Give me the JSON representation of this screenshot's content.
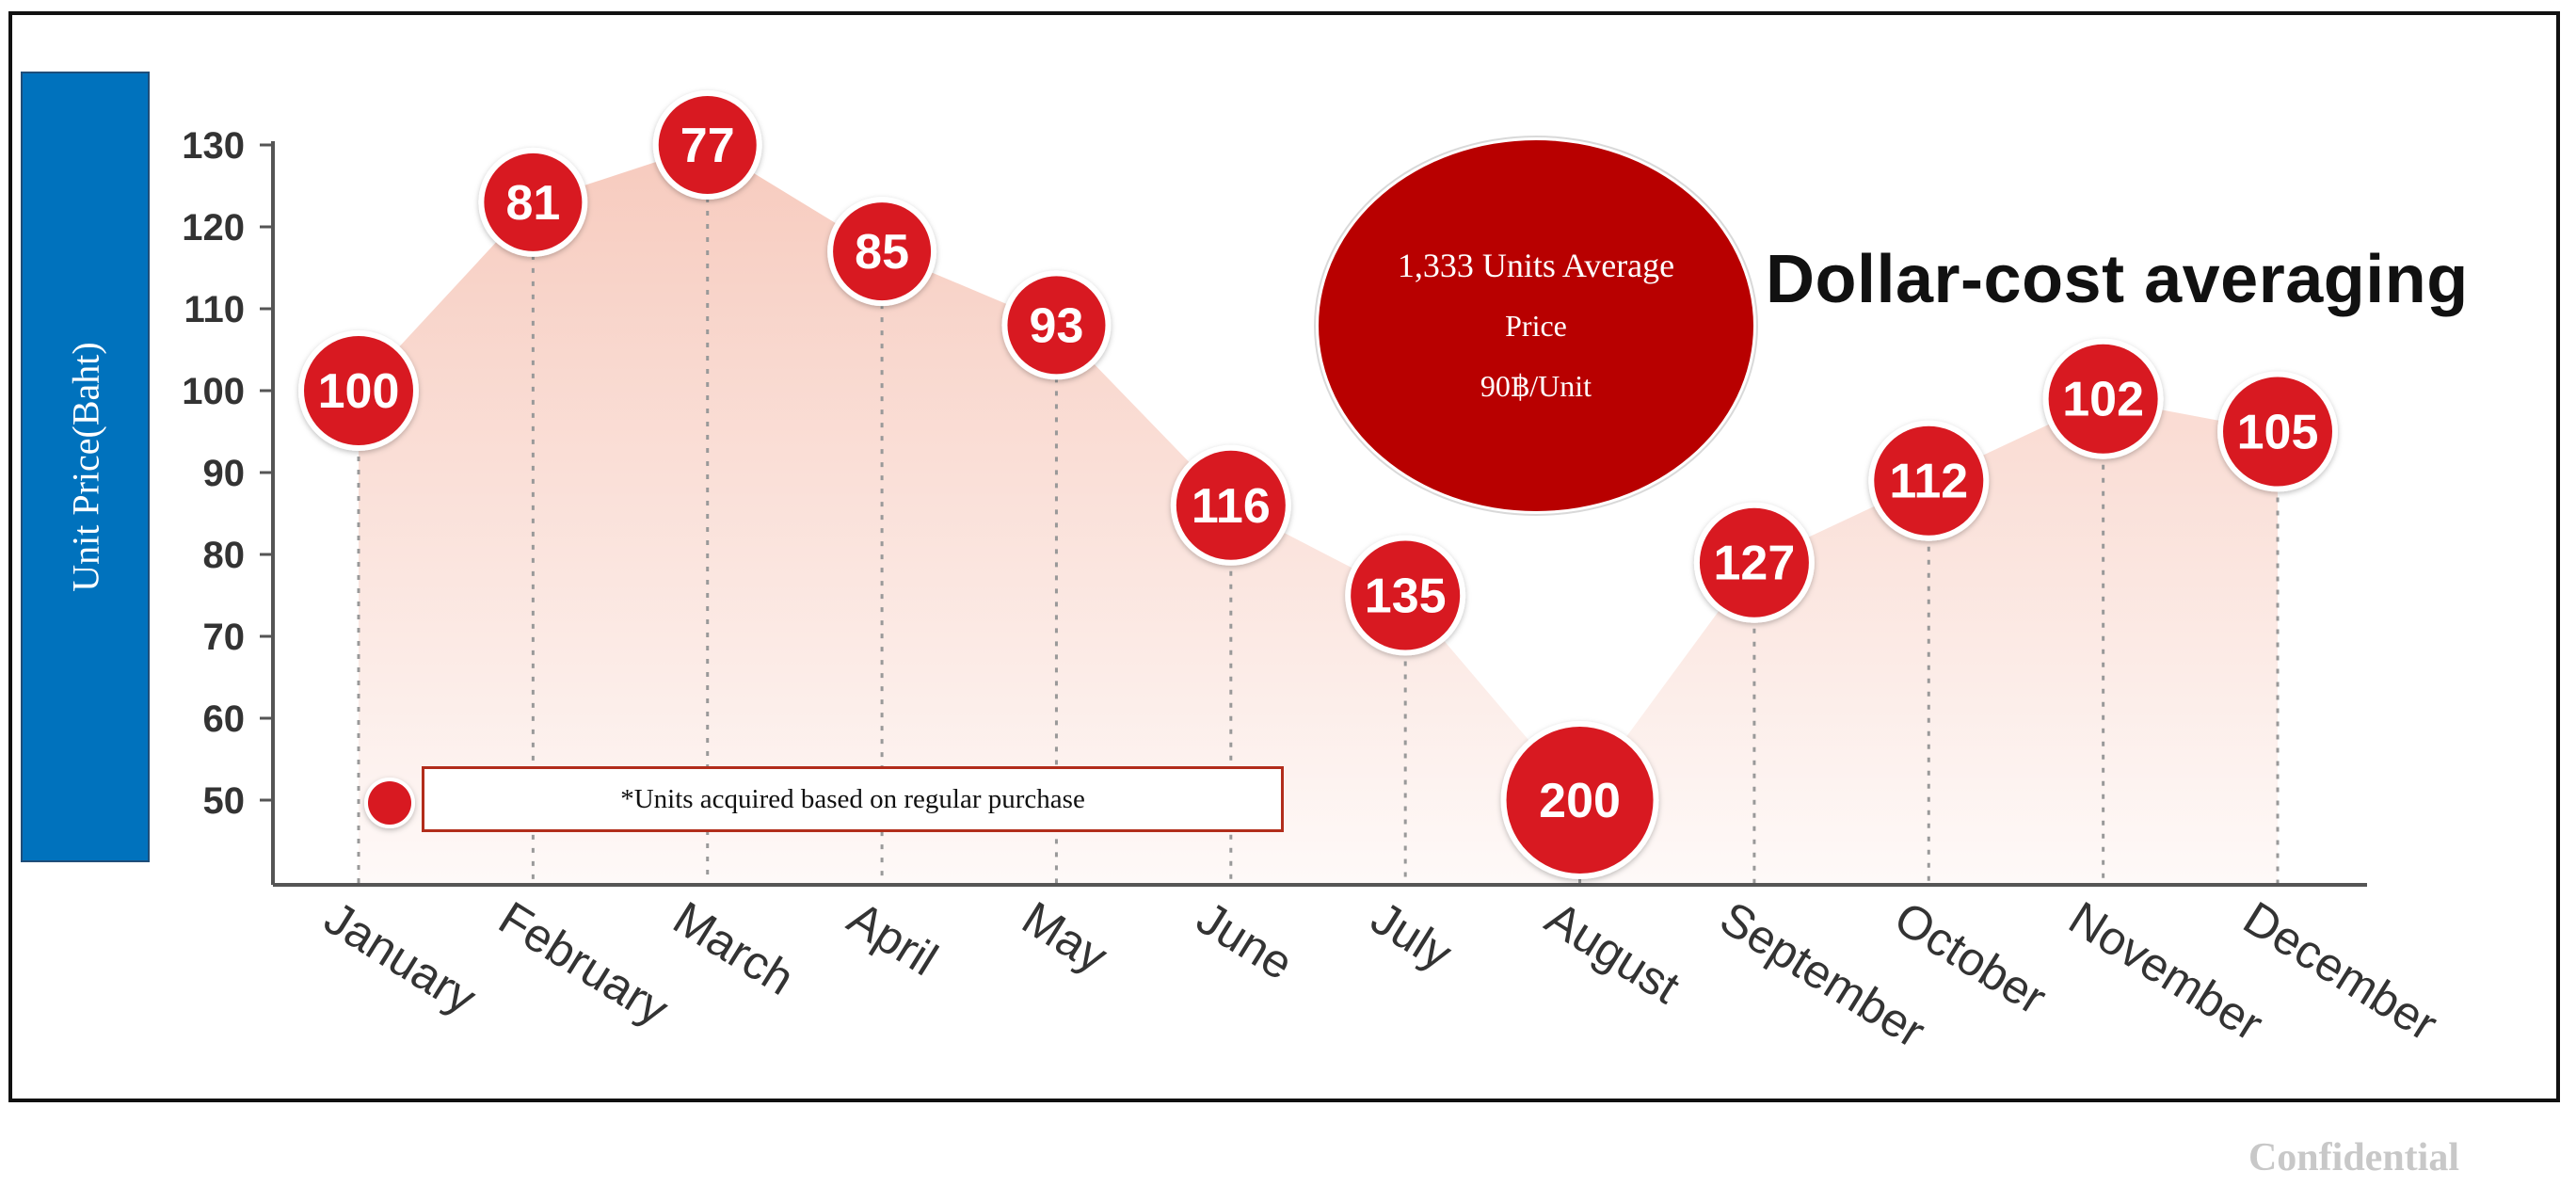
{
  "colors": {
    "accent": "#d81921",
    "ylabel_bg": "#0072bd",
    "avg_bubble": "#b80000",
    "area_fill": "#f4b9a8",
    "axis": "#555555",
    "dotted": "#999999"
  },
  "ylabel": "Unit Price(Baht)",
  "title": "Dollar-cost averaging",
  "average_box": {
    "line1": "1,333 Units Average",
    "line2": "Price",
    "line3": "90฿/Unit"
  },
  "note": "*Units acquired based on regular purchase",
  "footer": "Confidential",
  "chart_data": {
    "type": "line",
    "ylabel": "Unit Price(Baht)",
    "ylim": [
      40,
      130
    ],
    "yticks": [
      50,
      60,
      70,
      80,
      90,
      100,
      110,
      120,
      130
    ],
    "categories": [
      "January",
      "February",
      "March",
      "April",
      "May",
      "June",
      "July",
      "August",
      "September",
      "October",
      "November",
      "December"
    ],
    "series": [
      {
        "name": "Unit Price",
        "values": [
          100,
          123,
          130,
          117,
          108,
          86,
          75,
          50,
          79,
          89,
          99,
          95
        ]
      },
      {
        "name": "*Units acquired based on regular purchase",
        "values": [
          100,
          81,
          77,
          85,
          93,
          116,
          135,
          200,
          127,
          112,
          102,
          105
        ]
      }
    ],
    "grid": false,
    "marker_style": "red circles with labels"
  }
}
